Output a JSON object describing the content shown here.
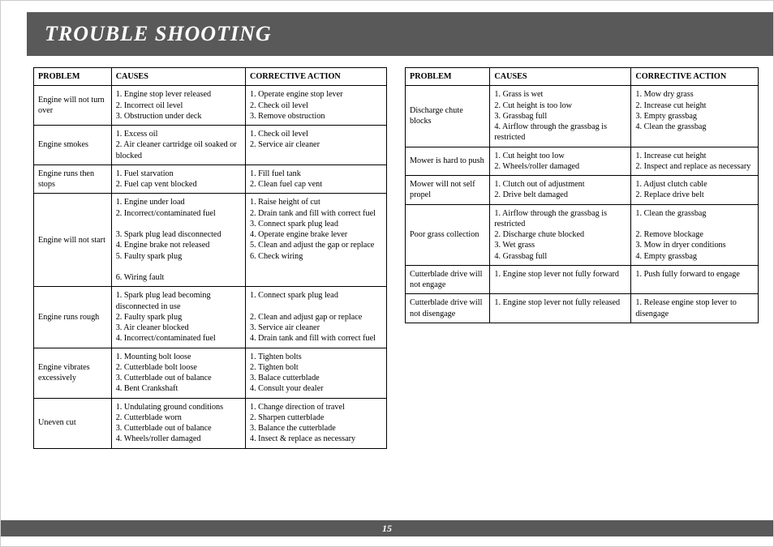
{
  "title": "TROUBLE SHOOTING",
  "page_number": "15",
  "headers": {
    "problem": "PROBLEM",
    "causes": "CAUSES",
    "action": "CORRECTIVE ACTION"
  },
  "left_rows": [
    {
      "problem": "Engine will not turn over",
      "causes": "1. Engine stop lever released\n2. Incorrect oil level\n3. Obstruction under deck",
      "action": "1. Operate engine stop lever\n2. Check oil level\n3. Remove obstruction"
    },
    {
      "problem": "Engine smokes",
      "causes": "1. Excess oil\n2. Air cleaner cartridge oil soaked or blocked",
      "action": "1. Check oil level\n2. Service air cleaner"
    },
    {
      "problem": "Engine runs then stops",
      "causes": "1. Fuel starvation\n2. Fuel cap vent blocked",
      "action": "1. Fill fuel tank\n2. Clean fuel cap vent"
    },
    {
      "problem": "Engine will not start",
      "causes": "1. Engine under load\n2. Incorrect/contaminated fuel\n\n3. Spark plug lead disconnected\n4. Engine brake not released\n5. Faulty spark plug\n\n6. Wiring fault",
      "action": "1. Raise height of cut\n2. Drain tank and fill with correct fuel\n3. Connect spark plug lead\n4. Operate engine brake lever\n5. Clean and adjust the gap or replace\n6. Check wiring"
    },
    {
      "problem": "Engine runs rough",
      "causes": "1. Spark plug lead becoming disconnected in use\n2. Faulty spark plug\n3. Air cleaner blocked\n4. Incorrect/contaminated fuel",
      "action": "1. Connect spark plug lead\n\n2. Clean and adjust gap or replace\n3. Service air cleaner\n4. Drain tank and fill with correct fuel"
    },
    {
      "problem": "Engine vibrates excessively",
      "causes": "1. Mounting bolt loose\n2. Cutterblade bolt loose\n3. Cutterblade out of balance\n4. Bent Crankshaft",
      "action": "1. Tighten bolts\n2. Tighten bolt\n3. Balace cutterblade\n4. Consult your dealer"
    },
    {
      "problem": "Uneven cut",
      "causes": "1. Undulating ground conditions\n2. Cutterblade worn\n3. Cutterblade out of balance\n4. Wheels/roller damaged",
      "action": "1. Change direction of travel\n2. Sharpen cutterblade\n3. Balance the cutterblade\n4. Insect & replace as necessary"
    }
  ],
  "right_rows": [
    {
      "problem": "Discharge chute blocks",
      "causes": "1. Grass is wet\n2. Cut height is too low\n3. Grassbag full\n4. Airflow through the grassbag is restricted",
      "action": "1. Mow dry grass\n2. Increase cut height\n3. Empty grassbag\n4. Clean the grassbag"
    },
    {
      "problem": "Mower is hard to push",
      "causes": "1. Cut height too low\n2. Wheels/roller damaged",
      "action": "1. Increase cut height\n2. Inspect and replace as necessary"
    },
    {
      "problem": "Mower will not self propel",
      "causes": "1. Clutch out of adjustment\n2. Drive belt damaged",
      "action": "1. Adjust clutch cable\n2. Replace drive belt"
    },
    {
      "problem": "Poor grass collection",
      "causes": "1. Airflow through the grassbag is restricted\n2. Discharge chute blocked\n3. Wet grass\n4. Grassbag full",
      "action": "1. Clean the grassbag\n\n2. Remove blockage\n3. Mow in dryer conditions\n4. Empty grassbag"
    },
    {
      "problem": "Cutterblade drive will not engage",
      "causes": "1. Engine stop lever not fully forward",
      "action": "1. Push fully forward to engage"
    },
    {
      "problem": "Cutterblade drive will not disengage",
      "causes": "1. Engine stop lever not fully released",
      "action": "1. Release engine stop lever to disengage"
    }
  ]
}
